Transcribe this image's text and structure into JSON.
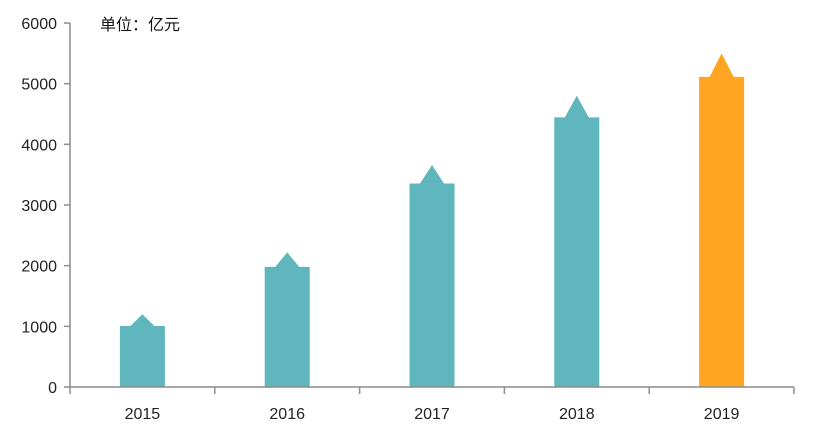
{
  "chart_data": {
    "type": "bar",
    "categories": [
      "2015",
      "2016",
      "2017",
      "2018",
      "2019"
    ],
    "values": [
      1200,
      2220,
      3660,
      4800,
      5500
    ],
    "unit_label": "单位：亿元",
    "ylim": [
      0,
      6000
    ],
    "yticks": [
      0,
      1000,
      2000,
      3000,
      4000,
      5000,
      6000
    ],
    "grid": false,
    "colors": [
      "#5fb7bd",
      "#5fb7bd",
      "#5fb7bd",
      "#5fb7bd",
      "#ffa521"
    ]
  }
}
